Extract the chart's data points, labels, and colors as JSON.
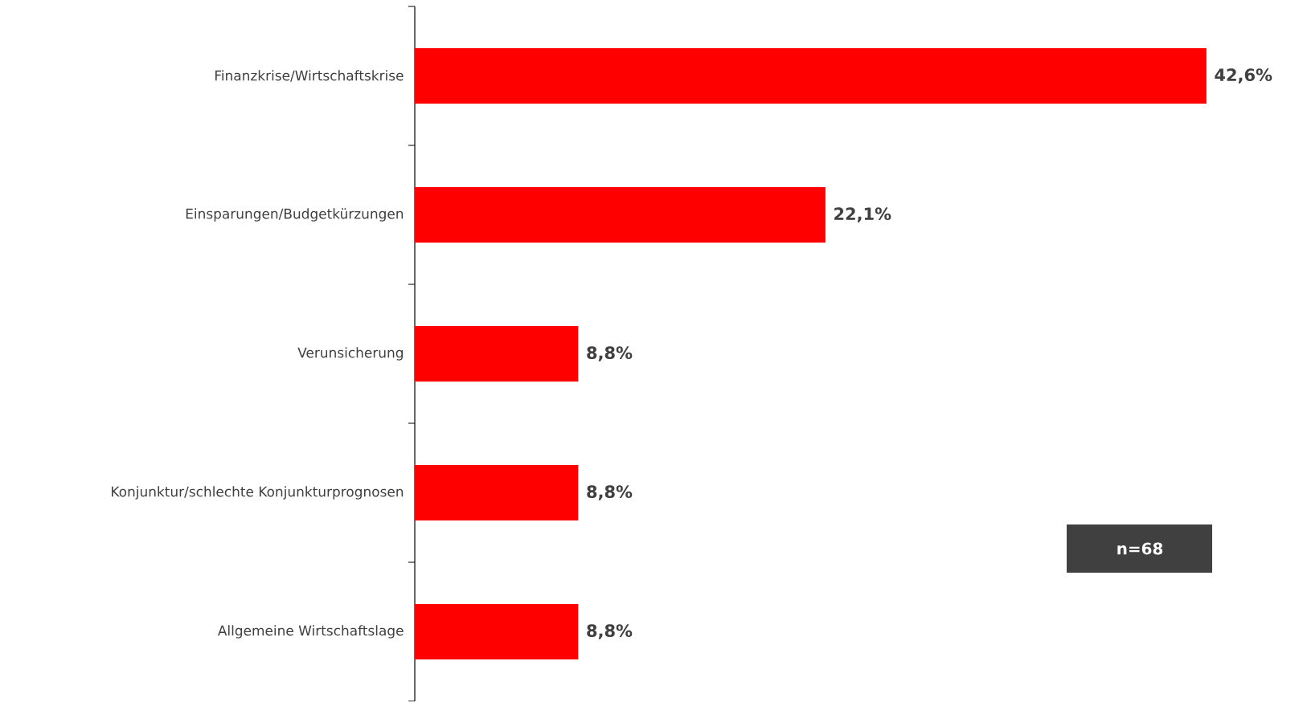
{
  "chart_data": {
    "type": "bar",
    "orientation": "horizontal",
    "categories": [
      "Finanzkrise/Wirtschaftskrise",
      "Einsparungen/Budgetkürzungen",
      "Verunsicherung",
      "Konjunktur/schlechte Konjunkturprognosen",
      "Allgemeine Wirtschaftslage"
    ],
    "values": [
      42.6,
      22.1,
      8.8,
      8.8,
      8.8
    ],
    "value_labels": [
      "42,6%",
      "22,1%",
      "8,8%",
      "8,8%",
      "8,8%"
    ],
    "color": "#ff0000",
    "annotations": [
      "n=68"
    ]
  }
}
